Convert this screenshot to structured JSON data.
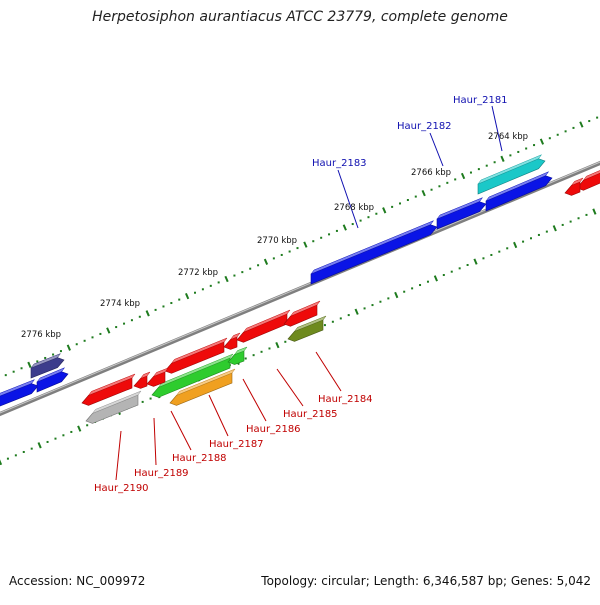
{
  "title": "Herpetosiphon aurantiacus ATCC 23779, complete genome",
  "footer": {
    "accession_label": "Accession:",
    "accession": "NC_009972",
    "topology_label": "Topology:",
    "topology": "circular",
    "length_label": "Length:",
    "length": "6,346,587 bp",
    "genes_label": "Genes:",
    "genes": "5,042"
  },
  "colors": {
    "backbone": "#7f7f7f",
    "tick": "#1e7b1e",
    "forward_label": "#1010b0",
    "reverse_label": "#c00000",
    "blue": "#0a14e6",
    "red": "#ee0a0a",
    "navy": "#3c3c8c",
    "cyan": "#1ac8c8",
    "green": "#2ecc2e",
    "orange": "#f0a020",
    "olive": "#6e8a1e",
    "gray": "#b4b4b4"
  },
  "ruler": {
    "unit": "kbp",
    "labels": [
      "2764 kbp",
      "2766 kbp",
      "2768 kbp",
      "2770 kbp",
      "2772 kbp",
      "2774 kbp",
      "2776 kbp"
    ]
  },
  "forward_genes": [
    {
      "label": "Haur_2181",
      "color": "cyan"
    },
    {
      "label": "Haur_2182",
      "color": "blue"
    },
    {
      "label": "Haur_2183",
      "color": "blue"
    }
  ],
  "reverse_genes": [
    {
      "label": "Haur_2184",
      "color": "olive"
    },
    {
      "label": "Haur_2185",
      "color": "red"
    },
    {
      "label": "Haur_2186",
      "color": "green"
    },
    {
      "label": "Haur_2187",
      "color": "orange"
    },
    {
      "label": "Haur_2188",
      "color": "green"
    },
    {
      "label": "Haur_2189",
      "color": "red"
    },
    {
      "label": "Haur_2190",
      "color": "gray"
    }
  ]
}
